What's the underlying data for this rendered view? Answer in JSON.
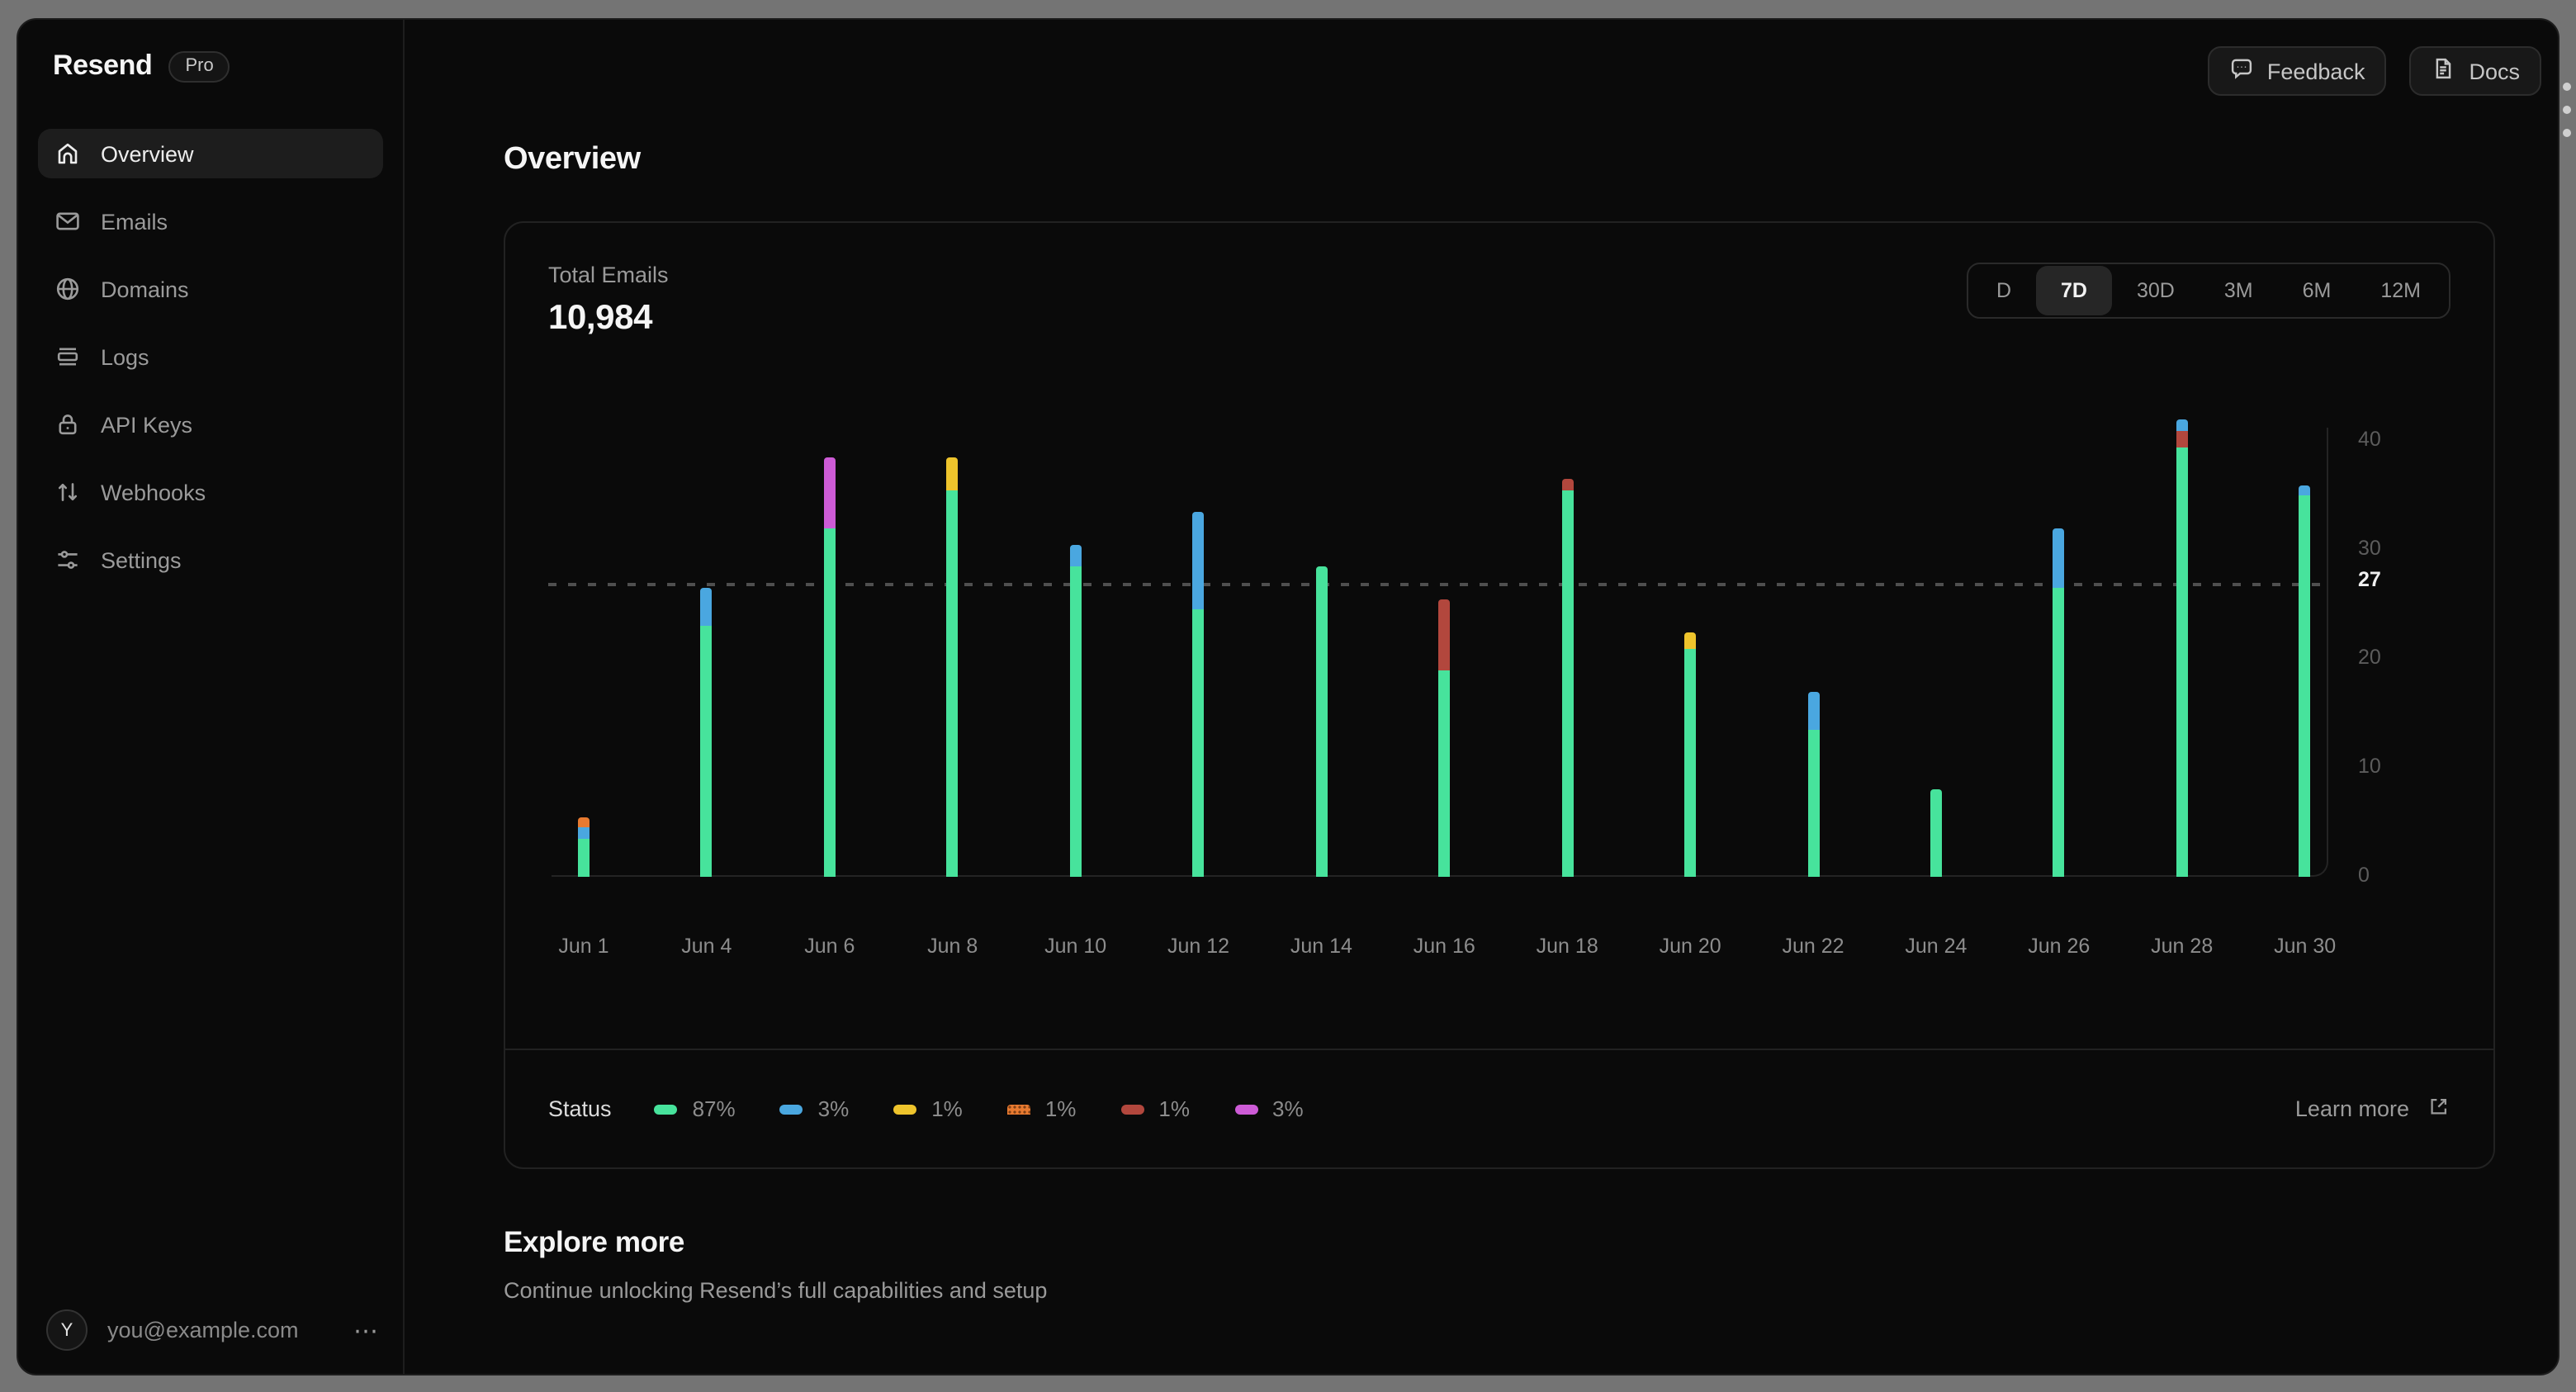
{
  "sidebar": {
    "logo": "Resend",
    "plan_badge": "Pro",
    "items": [
      {
        "label": "Overview",
        "icon": "home",
        "active": true
      },
      {
        "label": "Emails",
        "icon": "envelope",
        "active": false
      },
      {
        "label": "Domains",
        "icon": "globe",
        "active": false
      },
      {
        "label": "Logs",
        "icon": "logs",
        "active": false
      },
      {
        "label": "API Keys",
        "icon": "lock",
        "active": false
      },
      {
        "label": "Webhooks",
        "icon": "arrows-up-down",
        "active": false
      },
      {
        "label": "Settings",
        "icon": "sliders",
        "active": false
      }
    ],
    "user": {
      "avatar_initial": "Y",
      "email": "you@example.com",
      "menu": "⋯"
    }
  },
  "topbar": {
    "feedback_label": "Feedback",
    "docs_label": "Docs"
  },
  "page": {
    "title": "Overview"
  },
  "card": {
    "metric_label": "Total Emails",
    "metric_value": "10,984",
    "ranges": [
      {
        "label": "D",
        "active": false
      },
      {
        "label": "7D",
        "active": true
      },
      {
        "label": "30D",
        "active": false
      },
      {
        "label": "3M",
        "active": false
      },
      {
        "label": "6M",
        "active": false
      },
      {
        "label": "12M",
        "active": false
      }
    ],
    "legend_title": "Status",
    "learn_more": "Learn more"
  },
  "chart_data": {
    "type": "bar",
    "stacked": true,
    "title": "Total Emails",
    "ylim": [
      0,
      40
    ],
    "yticks": [
      0,
      10,
      20,
      30,
      40
    ],
    "reference_line": 27,
    "grid": "reference-dashed-only",
    "legend_position": "bottom",
    "colors": {
      "green": "#47e39c",
      "blue": "#4aa7e0",
      "yellow": "#eec42c",
      "orange": "#e87a30",
      "red": "#b2473d",
      "purple": "#cd5bd6"
    },
    "legend": [
      {
        "color": "green",
        "label": "87%",
        "pattern": "solid"
      },
      {
        "color": "blue",
        "label": "3%",
        "pattern": "solid"
      },
      {
        "color": "yellow",
        "label": "1%",
        "pattern": "solid"
      },
      {
        "color": "orange",
        "label": "1%",
        "pattern": "dotted"
      },
      {
        "color": "red",
        "label": "1%",
        "pattern": "solid"
      },
      {
        "color": "purple",
        "label": "3%",
        "pattern": "solid"
      }
    ],
    "bars": [
      {
        "label": "Jun 1",
        "segments": [
          [
            "green",
            3.5
          ],
          [
            "blue",
            1
          ],
          [
            "orange",
            1
          ]
        ]
      },
      {
        "label": "Jun 4",
        "segments": [
          [
            "green",
            23
          ],
          [
            "blue",
            3.5
          ]
        ]
      },
      {
        "label": "Jun 6",
        "segments": [
          [
            "green",
            32
          ],
          [
            "purple",
            6.5
          ]
        ]
      },
      {
        "label": "Jun 8",
        "segments": [
          [
            "green",
            35.5
          ],
          [
            "yellow",
            3
          ]
        ]
      },
      {
        "label": "Jun 10",
        "segments": [
          [
            "green",
            28.5
          ],
          [
            "blue",
            2
          ]
        ]
      },
      {
        "label": "Jun 12",
        "segments": [
          [
            "green",
            24.5
          ],
          [
            "blue",
            9
          ]
        ]
      },
      {
        "label": "Jun 14",
        "segments": [
          [
            "green",
            28.5
          ]
        ]
      },
      {
        "label": "Jun 16",
        "segments": [
          [
            "green",
            19
          ],
          [
            "red",
            6.5
          ]
        ]
      },
      {
        "label": "Jun 18",
        "segments": [
          [
            "green",
            35.5
          ],
          [
            "red",
            1
          ]
        ]
      },
      {
        "label": "Jun 20",
        "segments": [
          [
            "green",
            21
          ],
          [
            "yellow",
            1.5
          ]
        ]
      },
      {
        "label": "Jun 22",
        "segments": [
          [
            "green",
            13.5
          ],
          [
            "blue",
            3.5
          ]
        ]
      },
      {
        "label": "Jun 24",
        "segments": [
          [
            "green",
            8
          ]
        ]
      },
      {
        "label": "Jun 26",
        "segments": [
          [
            "green",
            26.5
          ],
          [
            "blue",
            5.5
          ]
        ]
      },
      {
        "label": "Jun 28",
        "segments": [
          [
            "green",
            39.5
          ],
          [
            "red",
            1.5
          ],
          [
            "blue",
            1
          ]
        ]
      },
      {
        "label": "Jun 30",
        "segments": [
          [
            "green",
            35
          ],
          [
            "blue",
            1
          ]
        ]
      }
    ]
  },
  "explore": {
    "title": "Explore more",
    "subtitle": "Continue unlocking Resend’s full capabilities and setup"
  }
}
